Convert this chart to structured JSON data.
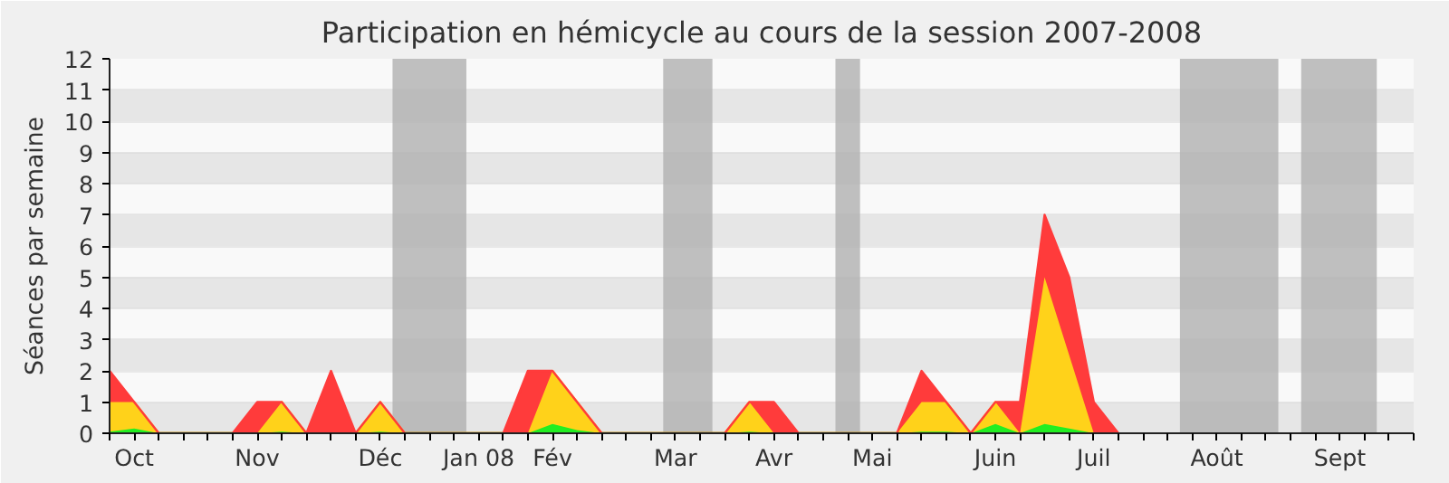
{
  "chart_data": {
    "type": "area",
    "title": "Participation en hémicycle au cours de la session 2007-2008",
    "ylabel": "Séances par semaine",
    "stacked": true,
    "x": [
      "2007-09-24",
      "2007-10-01",
      "2007-10-08",
      "2007-10-15",
      "2007-10-22",
      "2007-10-29",
      "2007-11-05",
      "2007-11-12",
      "2007-11-19",
      "2007-11-26",
      "2007-12-03",
      "2007-12-10",
      "2007-12-17",
      "2007-12-24",
      "2007-12-31",
      "2008-01-07",
      "2008-01-14",
      "2008-01-21",
      "2008-01-28",
      "2008-02-04",
      "2008-02-11",
      "2008-02-18",
      "2008-02-25",
      "2008-03-03",
      "2008-03-10",
      "2008-03-17",
      "2008-03-24",
      "2008-03-31",
      "2008-04-07",
      "2008-04-14",
      "2008-04-21",
      "2008-04-28",
      "2008-05-05",
      "2008-05-12",
      "2008-05-19",
      "2008-05-26",
      "2008-06-02",
      "2008-06-09",
      "2008-06-16",
      "2008-06-23",
      "2008-06-30",
      "2008-07-07"
    ],
    "series": [
      {
        "color": "#22ee22",
        "values": [
          0.05,
          0.15,
          0,
          0,
          0,
          0,
          0,
          0.05,
          0,
          0,
          0,
          0.05,
          0,
          0,
          0,
          0,
          0,
          0,
          0.3,
          0.1,
          0,
          0,
          0,
          0,
          0,
          0,
          0.05,
          0,
          0,
          0,
          0,
          0,
          0,
          0.05,
          0.05,
          0,
          0.3,
          0,
          0.3,
          0.15,
          0,
          0
        ]
      },
      {
        "color": "#ffd21a",
        "values": [
          0.95,
          0.85,
          0,
          0,
          0,
          0,
          0,
          0.95,
          0,
          0,
          0,
          0.95,
          0,
          0,
          0,
          0,
          0,
          0,
          1.7,
          0.9,
          0,
          0,
          0,
          0,
          0,
          0,
          0.95,
          0,
          0,
          0,
          0,
          0,
          0,
          0.95,
          0.95,
          0,
          0.7,
          0,
          4.7,
          2.35,
          0,
          0
        ]
      },
      {
        "color": "#ff3b3b",
        "values": [
          1,
          0,
          0,
          0,
          0,
          0,
          1,
          0,
          0,
          2,
          0,
          0,
          0,
          0,
          0,
          0,
          0,
          2,
          0,
          0,
          0,
          0,
          0,
          0,
          0,
          0,
          0,
          1,
          0,
          0,
          0,
          0,
          0,
          1,
          0,
          0,
          0,
          1,
          2,
          2.5,
          1,
          0
        ]
      }
    ],
    "xlim": [
      "2007-09-24",
      "2008-09-29"
    ],
    "ylim": [
      0,
      12
    ],
    "yticks": [
      0,
      1,
      2,
      3,
      4,
      5,
      6,
      7,
      8,
      9,
      10,
      11,
      12
    ],
    "xticks": [
      {
        "value": "2007-09-24",
        "label": null
      },
      {
        "value": "2007-10-01",
        "label": "Oct"
      },
      {
        "value": "2007-10-08",
        "label": null
      },
      {
        "value": "2007-10-15",
        "label": null
      },
      {
        "value": "2007-10-22",
        "label": null
      },
      {
        "value": "2007-10-29",
        "label": null
      },
      {
        "value": "2007-11-05",
        "label": "Nov"
      },
      {
        "value": "2007-11-12",
        "label": null
      },
      {
        "value": "2007-11-19",
        "label": null
      },
      {
        "value": "2007-11-26",
        "label": null
      },
      {
        "value": "2007-12-03",
        "label": null
      },
      {
        "value": "2007-12-10",
        "label": "Déc"
      },
      {
        "value": "2007-12-17",
        "label": null
      },
      {
        "value": "2007-12-24",
        "label": null
      },
      {
        "value": "2007-12-31",
        "label": null
      },
      {
        "value": "2008-01-07",
        "label": "Jan 08"
      },
      {
        "value": "2008-01-14",
        "label": null
      },
      {
        "value": "2008-01-21",
        "label": null
      },
      {
        "value": "2008-01-28",
        "label": "Fév"
      },
      {
        "value": "2008-02-04",
        "label": null
      },
      {
        "value": "2008-02-11",
        "label": null
      },
      {
        "value": "2008-02-18",
        "label": null
      },
      {
        "value": "2008-02-25",
        "label": null
      },
      {
        "value": "2008-03-03",
        "label": "Mar"
      },
      {
        "value": "2008-03-10",
        "label": null
      },
      {
        "value": "2008-03-17",
        "label": null
      },
      {
        "value": "2008-03-24",
        "label": null
      },
      {
        "value": "2008-03-31",
        "label": "Avr"
      },
      {
        "value": "2008-04-07",
        "label": null
      },
      {
        "value": "2008-04-14",
        "label": null
      },
      {
        "value": "2008-04-21",
        "label": null
      },
      {
        "value": "2008-04-28",
        "label": "Mai"
      },
      {
        "value": "2008-05-05",
        "label": null
      },
      {
        "value": "2008-05-12",
        "label": null
      },
      {
        "value": "2008-05-19",
        "label": null
      },
      {
        "value": "2008-05-26",
        "label": null
      },
      {
        "value": "2008-06-02",
        "label": "Juin"
      },
      {
        "value": "2008-06-09",
        "label": null
      },
      {
        "value": "2008-06-16",
        "label": null
      },
      {
        "value": "2008-06-23",
        "label": null
      },
      {
        "value": "2008-06-30",
        "label": "Juil"
      },
      {
        "value": "2008-07-07",
        "label": null
      },
      {
        "value": "2008-07-14",
        "label": null
      },
      {
        "value": "2008-07-21",
        "label": null
      },
      {
        "value": "2008-07-28",
        "label": null
      },
      {
        "value": "2008-08-04",
        "label": "Août"
      },
      {
        "value": "2008-08-11",
        "label": null
      },
      {
        "value": "2008-08-18",
        "label": null
      },
      {
        "value": "2008-08-25",
        "label": null
      },
      {
        "value": "2008-09-01",
        "label": null
      },
      {
        "value": "2008-09-08",
        "label": "Sept"
      },
      {
        "value": "2008-09-15",
        "label": null
      },
      {
        "value": "2008-09-22",
        "label": null
      },
      {
        "value": "2008-09-29",
        "label": null
      }
    ],
    "bands": [
      {
        "axis": "x",
        "from": "2007-12-13T12:00",
        "to": "2008-01-03T12:00",
        "color": "#b0b0b0"
      },
      {
        "axis": "x",
        "from": "2008-02-28T12:00",
        "to": "2008-03-13T12:00",
        "color": "#b0b0b0"
      },
      {
        "axis": "x",
        "from": "2008-04-17T12:00",
        "to": "2008-04-24T12:00",
        "color": "#b0b0b0"
      },
      {
        "axis": "x",
        "from": "2008-07-24T12:00",
        "to": "2008-08-21T12:00",
        "color": "#b0b0b0"
      },
      {
        "axis": "x",
        "from": "2008-08-28",
        "to": "2008-09-18T12:00",
        "color": "#b0b0b0"
      }
    ],
    "grid": "y",
    "marker": "none"
  }
}
